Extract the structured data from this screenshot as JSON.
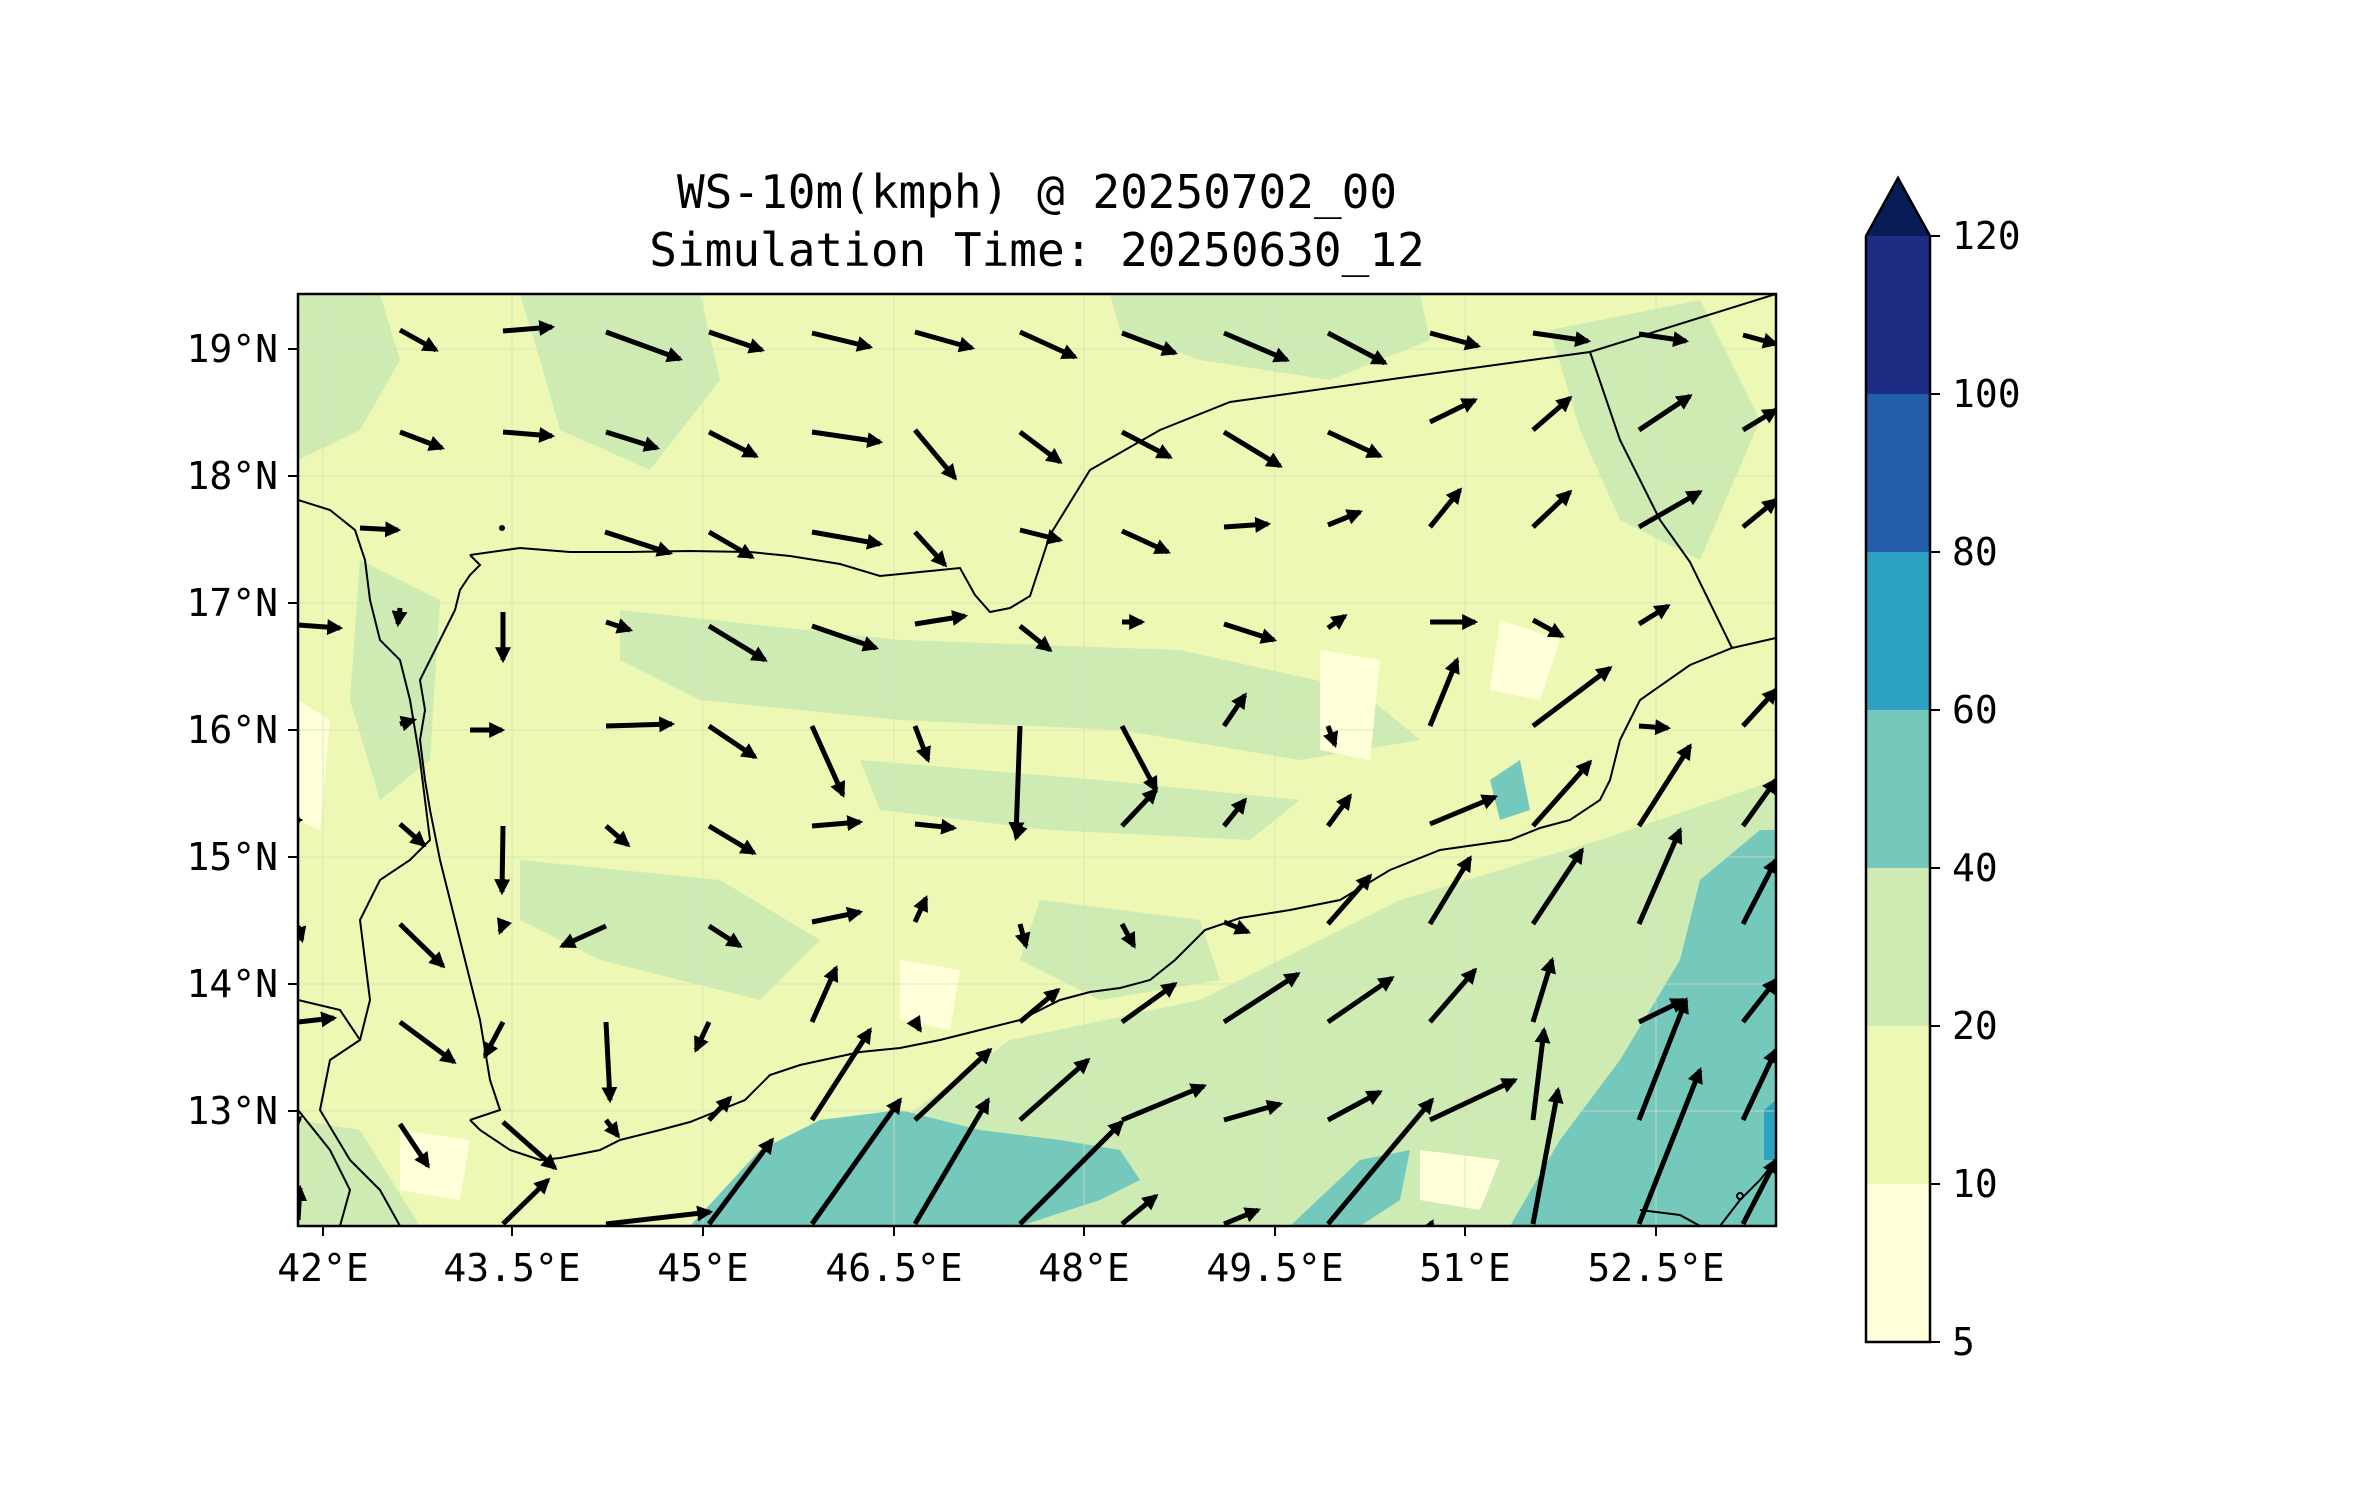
{
  "figure": {
    "title_line1": "WS-10m(kmph) @ 20250702_00",
    "title_line2": "Simulation Time: 20250630_12"
  },
  "map": {
    "lon_ticks": [
      "42°E",
      "43.5°E",
      "45°E",
      "46.5°E",
      "48°E",
      "49.5°E",
      "51°E",
      "52.5°E"
    ],
    "lat_ticks": [
      "19°N",
      "18°N",
      "17°N",
      "16°N",
      "15°N",
      "14°N",
      "13°N"
    ],
    "lon_range": [
      41.9,
      53.8
    ],
    "lat_range": [
      12.1,
      19.45
    ],
    "field_colors": {
      "5-10": "#ffffd9",
      "10-20": "#eef8b5",
      "20-40": "#cdebb3",
      "40-60": "#75c8bc",
      "60-80": "#2ca1c2",
      "80-100": "#225fa8",
      "100-120": "#1e2d84",
      "over": "#081d58"
    }
  },
  "colorbar": {
    "tick_labels": [
      "120",
      "100",
      "80",
      "60",
      "40",
      "20",
      "10",
      "5"
    ],
    "levels": [
      5,
      10,
      20,
      40,
      60,
      80,
      100,
      120
    ],
    "extend": "max"
  }
}
